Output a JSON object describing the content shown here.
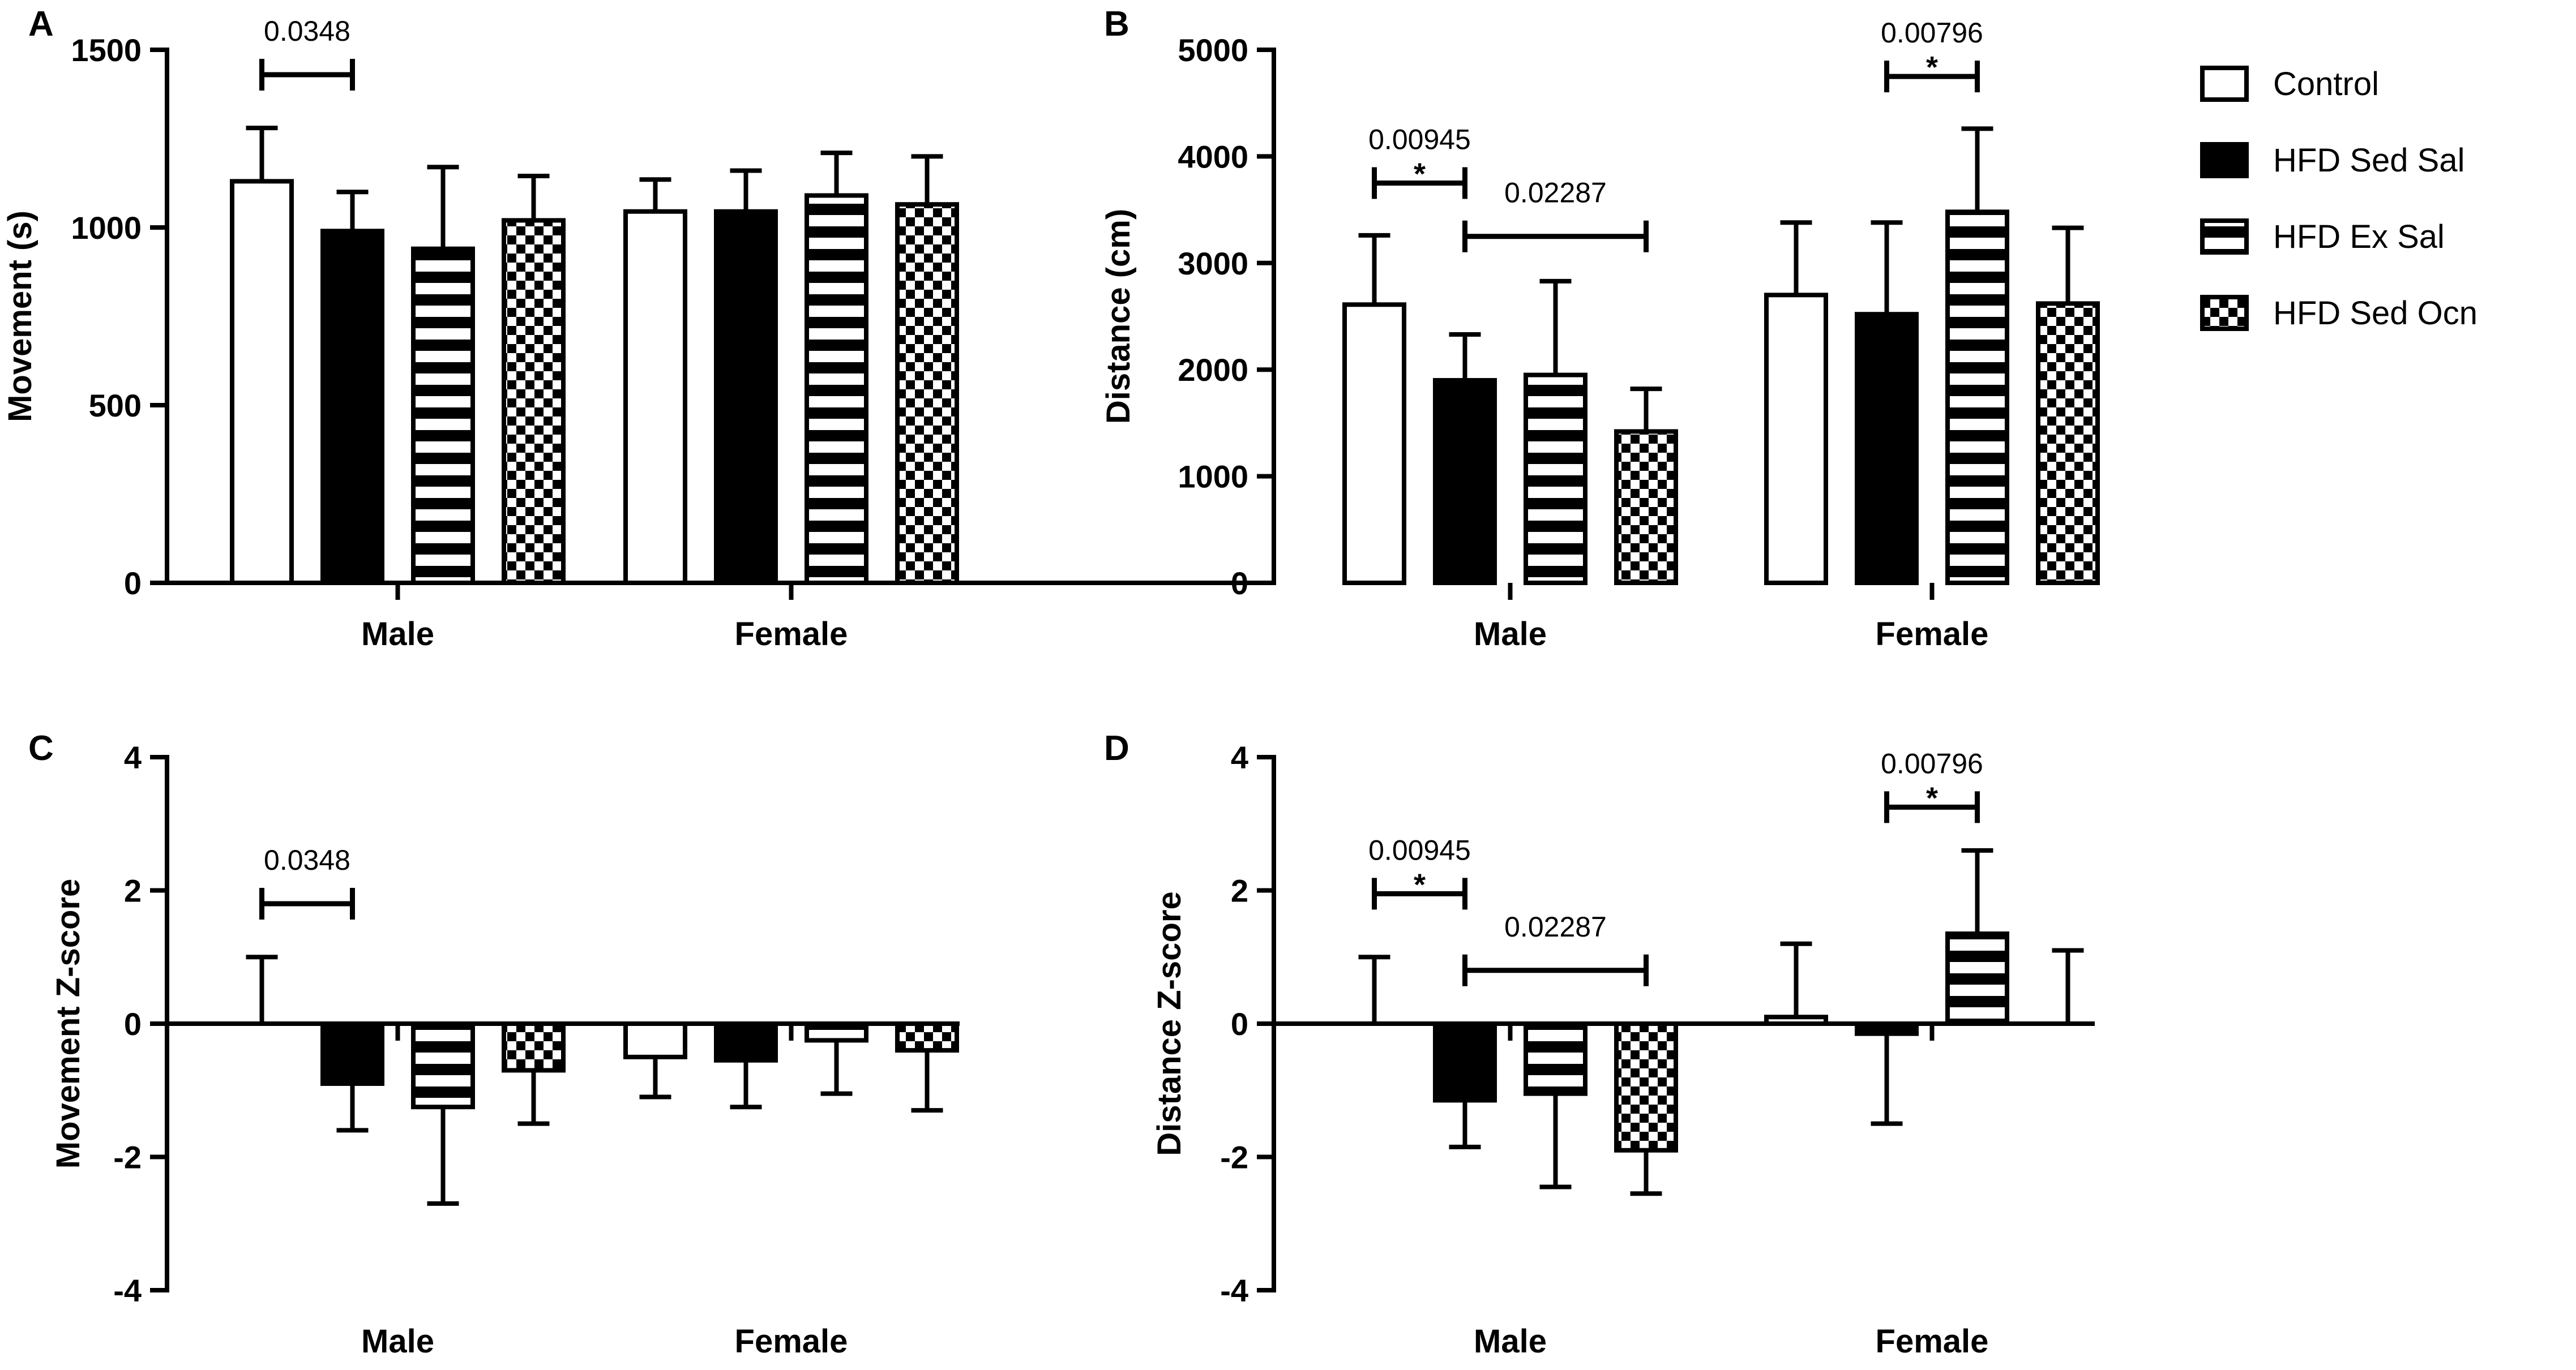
{
  "legend": {
    "items": [
      {
        "label": "Control",
        "pattern": "white"
      },
      {
        "label": "HFD Sed Sal",
        "pattern": "black"
      },
      {
        "label": "HFD Ex Sal",
        "pattern": "hstripes"
      },
      {
        "label": "HFD Sed Ocn",
        "pattern": "checker"
      }
    ]
  },
  "colors": {
    "ink": "#000000",
    "background": "#ffffff"
  },
  "chart_data": [
    {
      "panel": "A",
      "type": "bar",
      "ylabel": "Movement (s)",
      "ylim": [
        0,
        1500
      ],
      "yticks": [
        0,
        500,
        1000,
        1500
      ],
      "categories": [
        "Male",
        "Female"
      ],
      "series": [
        {
          "name": "Control",
          "values": [
            1130,
            1045
          ],
          "err": [
            150,
            90
          ]
        },
        {
          "name": "HFD Sed Sal",
          "values": [
            990,
            1045
          ],
          "err": [
            110,
            115
          ]
        },
        {
          "name": "HFD Ex Sal",
          "values": [
            940,
            1090
          ],
          "err": [
            230,
            120
          ]
        },
        {
          "name": "HFD Sed Ocn",
          "values": [
            1020,
            1065
          ],
          "err": [
            125,
            135
          ]
        }
      ],
      "annotations": [
        {
          "label": "0.0348",
          "star": "",
          "from": [
            0,
            0
          ],
          "to": [
            0,
            1
          ],
          "y": 1430
        }
      ]
    },
    {
      "panel": "B",
      "type": "bar",
      "ylabel": "Distance (cm)",
      "ylim": [
        0,
        5000
      ],
      "yticks": [
        0,
        1000,
        2000,
        3000,
        4000,
        5000
      ],
      "categories": [
        "Male",
        "Female"
      ],
      "series": [
        {
          "name": "Control",
          "values": [
            2610,
            2700
          ],
          "err": [
            650,
            680
          ]
        },
        {
          "name": "HFD Sed Sal",
          "values": [
            1900,
            2520
          ],
          "err": [
            430,
            860
          ]
        },
        {
          "name": "HFD Ex Sal",
          "values": [
            1950,
            3480
          ],
          "err": [
            880,
            780
          ]
        },
        {
          "name": "HFD Sed Ocn",
          "values": [
            1420,
            2620
          ],
          "err": [
            400,
            710
          ]
        }
      ],
      "annotations": [
        {
          "label": "0.00945",
          "star": "*",
          "from": [
            0,
            0
          ],
          "to": [
            0,
            1
          ],
          "y": 3750
        },
        {
          "label": "0.02287",
          "star": "",
          "from": [
            0,
            1
          ],
          "to": [
            0,
            3
          ],
          "y": 3250
        },
        {
          "label": "0.00796",
          "star": "*",
          "from": [
            1,
            1
          ],
          "to": [
            1,
            2
          ],
          "y": 4750
        }
      ]
    },
    {
      "panel": "C",
      "type": "bar",
      "ylabel": "Movement Z-score",
      "ylim": [
        -4,
        4
      ],
      "yticks": [
        -4,
        -2,
        0,
        2,
        4
      ],
      "categories": [
        "Male",
        "Female"
      ],
      "series": [
        {
          "name": "Control",
          "values": [
            0.0,
            -0.5
          ],
          "err": [
            1.0,
            0.6
          ]
        },
        {
          "name": "HFD Sed Sal",
          "values": [
            -0.9,
            -0.55
          ],
          "err": [
            0.7,
            0.7
          ]
        },
        {
          "name": "HFD Ex Sal",
          "values": [
            -1.25,
            -0.25
          ],
          "err": [
            1.45,
            0.8
          ]
        },
        {
          "name": "HFD Sed Ocn",
          "values": [
            -0.7,
            -0.4
          ],
          "err": [
            0.8,
            0.9
          ]
        }
      ],
      "annotations": [
        {
          "label": "0.0348",
          "star": "",
          "from": [
            0,
            0
          ],
          "to": [
            0,
            1
          ],
          "y": 1.8
        }
      ]
    },
    {
      "panel": "D",
      "type": "bar",
      "ylabel": "Distance Z-score",
      "ylim": [
        -4,
        4
      ],
      "yticks": [
        -4,
        -2,
        0,
        2,
        4
      ],
      "categories": [
        "Male",
        "Female"
      ],
      "series": [
        {
          "name": "Control",
          "values": [
            0.0,
            0.1
          ],
          "err": [
            1.0,
            1.1
          ]
        },
        {
          "name": "HFD Sed Sal",
          "values": [
            -1.15,
            -0.15
          ],
          "err": [
            0.7,
            1.35
          ]
        },
        {
          "name": "HFD Ex Sal",
          "values": [
            -1.05,
            1.35
          ],
          "err": [
            1.4,
            1.25
          ]
        },
        {
          "name": "HFD Sed Ocn",
          "values": [
            -1.9,
            0.0
          ],
          "err": [
            0.65,
            1.1
          ]
        }
      ],
      "annotations": [
        {
          "label": "0.00945",
          "star": "*",
          "from": [
            0,
            0
          ],
          "to": [
            0,
            1
          ],
          "y": 1.95
        },
        {
          "label": "0.02287",
          "star": "",
          "from": [
            0,
            1
          ],
          "to": [
            0,
            3
          ],
          "y": 0.8
        },
        {
          "label": "0.00796",
          "star": "*",
          "from": [
            1,
            1
          ],
          "to": [
            1,
            2
          ],
          "y": 3.25
        }
      ]
    }
  ]
}
